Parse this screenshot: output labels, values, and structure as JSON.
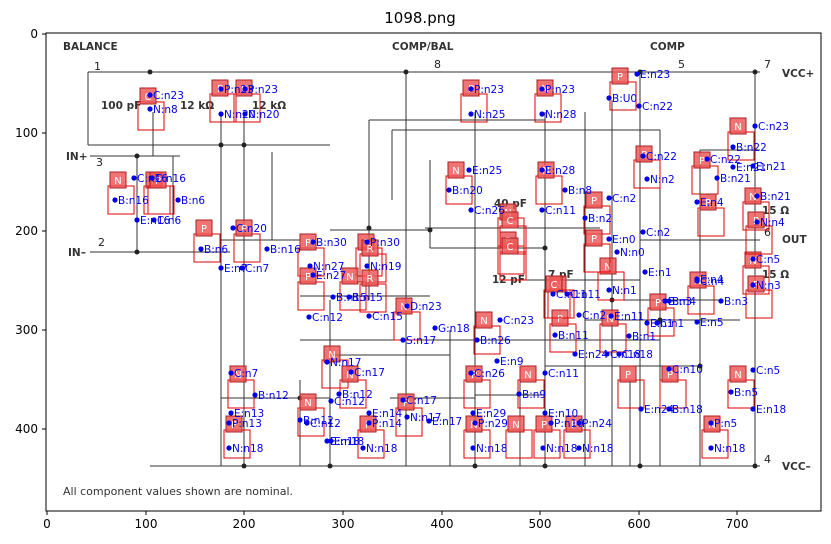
{
  "title": "1098.png",
  "axes": {
    "x_ticks": [
      "0",
      "100",
      "200",
      "300",
      "400",
      "500",
      "600",
      "700"
    ],
    "y_ticks": [
      "0",
      "100",
      "200",
      "300",
      "400"
    ]
  },
  "schematic": {
    "pin_labels": {
      "balance": "BALANCE",
      "comp_bal": "COMP/BAL",
      "comp": "COMP",
      "in_plus": "IN+",
      "in_minus": "IN–",
      "out": "OUT",
      "vcc_plus": "VCC+",
      "vcc_minus": "VCC–"
    },
    "pin_numbers": [
      "1",
      "8",
      "5",
      "7",
      "3",
      "2",
      "6",
      "4"
    ],
    "component_values": [
      "100 pF",
      "12 kΩ",
      "12 kΩ",
      "40 pF",
      "12 pF",
      "7 pF",
      "15 Ω",
      "15 Ω"
    ],
    "footnote": "All component values shown are nominal.",
    "devices": [
      "C",
      "P",
      "P",
      "P",
      "P",
      "N",
      "N",
      "N",
      "P",
      "P",
      "P",
      "P",
      "N",
      "N",
      "P",
      "N",
      "P",
      "P",
      "P",
      "N",
      "N",
      "P",
      "P",
      "P",
      "N",
      "N",
      "N",
      "P",
      "N",
      "N",
      "N",
      "P",
      "N",
      "N",
      "P",
      "N",
      "N",
      "N",
      "P",
      "P",
      "P",
      "N",
      "N",
      "N",
      "P",
      "P",
      "P",
      "P",
      "N",
      "N",
      "P",
      "P",
      "C",
      "C",
      "C",
      "P",
      "P",
      "R",
      "R"
    ],
    "net_labels": [
      "C:n23",
      "N:n8",
      "P:n23",
      "N:n20",
      "P:n23",
      "N:n20",
      "E:n23",
      "B:U0",
      "C:n22",
      "P:n23",
      "N:n25",
      "P:n23",
      "N:n28",
      "C:n23",
      "B:n22",
      "E:n21",
      "C:n16",
      "B:n16",
      "E:n16",
      "C:n16",
      "B:n6",
      "C:n6",
      "E:n25",
      "B:n20",
      "C:n26",
      "E:n28",
      "B:n8",
      "C:n11",
      "C:n2",
      "B:n2",
      "E:n0",
      "C:n22",
      "B:n21",
      "E:n4",
      "C:n22",
      "E:n21",
      "N:n2",
      "B:n21",
      "N:n4",
      "C:n2",
      "C:n20",
      "B:n6",
      "E:n7",
      "C:n7",
      "B:n16",
      "B:n30",
      "N:n27",
      "P:n30",
      "N:n19",
      "N:n0",
      "E:n1",
      "N:n1",
      "C:n4",
      "B:n4",
      "N:n3",
      "B:n3",
      "E:n5",
      "C:n5",
      "B:n3",
      "E:n1",
      "E:n4",
      "B:n15",
      "C:n15",
      "C:n12",
      "E:n27",
      "B:n15",
      "C:n11",
      "D:n23",
      "G:n18",
      "S:n17",
      "C:n23",
      "B:n26",
      "E:n9",
      "C:n2",
      "E:n11",
      "C:n11",
      "B:n11",
      "E:n24",
      "C:n18",
      "B:n1",
      "C:n1",
      "C:n7",
      "B:n12",
      "E:n13",
      "P:n13",
      "N:n18",
      "C:n17",
      "N:n17",
      "B:n12",
      "C:n12",
      "E:n14",
      "P:n14",
      "E:n18",
      "N:n18",
      "C:n17",
      "N:n17",
      "E:n17",
      "C:n26",
      "E:n29",
      "P:n29",
      "N:n18",
      "C:n11",
      "B:n9",
      "E:n10",
      "P:n10",
      "N:n18",
      "P:n24",
      "N:n18",
      "C:n10",
      "E:n24",
      "C:n18",
      "B:n18",
      "P:n5",
      "N:n18",
      "C:n5",
      "B:n5",
      "E:n18",
      "B:n12",
      "C:n12",
      "E:n18"
    ]
  }
}
